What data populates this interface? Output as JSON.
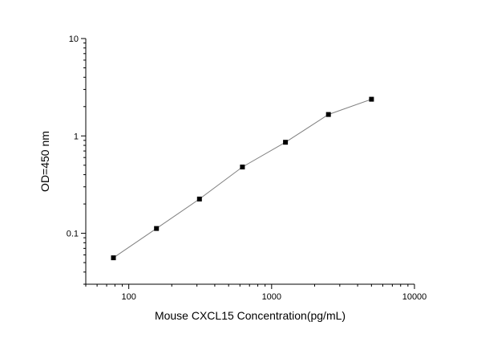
{
  "chart_data": {
    "type": "scatter",
    "title": "",
    "xlabel": "Mouse CXCL15 Concentration(pg/mL)",
    "ylabel": "OD=450 nm",
    "xscale": "log",
    "yscale": "log",
    "xlim": [
      50,
      10000
    ],
    "ylim": [
      0.03,
      10
    ],
    "xticks": [
      {
        "value": 100,
        "label": "100"
      },
      {
        "value": 1000,
        "label": "1000"
      },
      {
        "value": 10000,
        "label": "10000"
      }
    ],
    "yticks": [
      {
        "value": 0.1,
        "label": "0.1"
      },
      {
        "value": 1,
        "label": "1"
      },
      {
        "value": 10,
        "label": "10"
      }
    ],
    "grid": false,
    "legend": "none",
    "series": [
      {
        "x": [
          78.125,
          156.25,
          312.5,
          625,
          1250,
          2500,
          5000
        ],
        "y": [
          0.056,
          0.112,
          0.225,
          0.48,
          0.86,
          1.66,
          2.38
        ],
        "marker": "square",
        "line_color": "#808080",
        "marker_color": "#000000"
      }
    ]
  }
}
